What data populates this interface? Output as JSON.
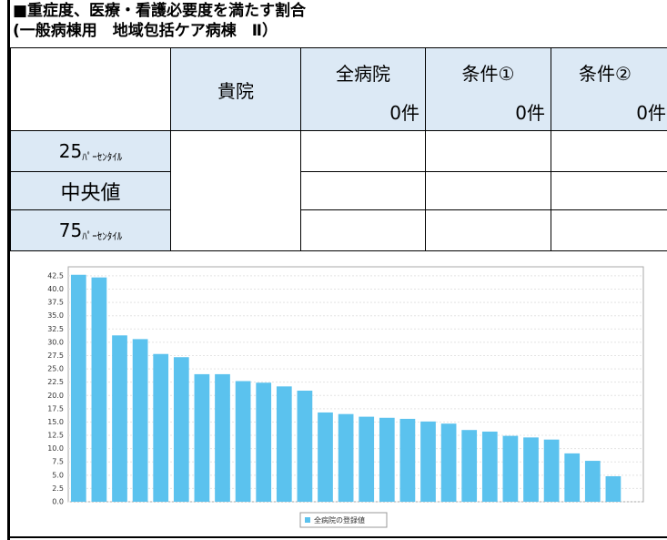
{
  "header": {
    "title": "■重症度、医療・看護必要度を満たす割合",
    "subtitle": "(一般病棟用　地域包括ケア病棟　Ⅱ）"
  },
  "table": {
    "columns": [
      {
        "name": "貴院"
      },
      {
        "name": "全病院",
        "count": "0件"
      },
      {
        "name": "条件①",
        "count": "0件"
      },
      {
        "name": "条件②",
        "count": "0件"
      }
    ],
    "rows": [
      {
        "number": "25",
        "suffix": "ﾊﾟｰｾﾝﾀｲﾙ"
      },
      {
        "label": "中央値"
      },
      {
        "number": "75",
        "suffix": "ﾊﾟｰｾﾝﾀｲﾙ"
      }
    ]
  },
  "chart_data": {
    "type": "bar",
    "series": [
      {
        "name": "全病院の登録値",
        "color": "#5bc2ee",
        "values": [
          42.7,
          42.2,
          31.3,
          30.6,
          27.8,
          27.2,
          24.0,
          24.0,
          22.7,
          22.4,
          21.7,
          20.9,
          16.8,
          16.5,
          16.0,
          15.8,
          15.6,
          15.1,
          14.7,
          13.5,
          13.2,
          12.4,
          12.1,
          11.7,
          9.1,
          7.7,
          4.8
        ]
      }
    ],
    "ylim": [
      0,
      44.2
    ],
    "yticks": [
      {
        "value": 0,
        "label": "0.0"
      },
      2.5,
      {
        "value": 5,
        "label": "5.0"
      },
      7.5,
      {
        "value": 10,
        "label": "10.0"
      },
      12.5,
      {
        "value": 15,
        "label": "15.0"
      },
      17.5,
      {
        "value": 20,
        "label": "20.0"
      },
      22.5,
      {
        "value": 25,
        "label": "25.0"
      },
      27.5,
      {
        "value": 30,
        "label": "30.0"
      },
      32.5,
      {
        "value": 35,
        "label": "35.0"
      },
      37.5,
      {
        "value": 40,
        "label": "40.0"
      },
      42.5
    ],
    "grid": true
  }
}
